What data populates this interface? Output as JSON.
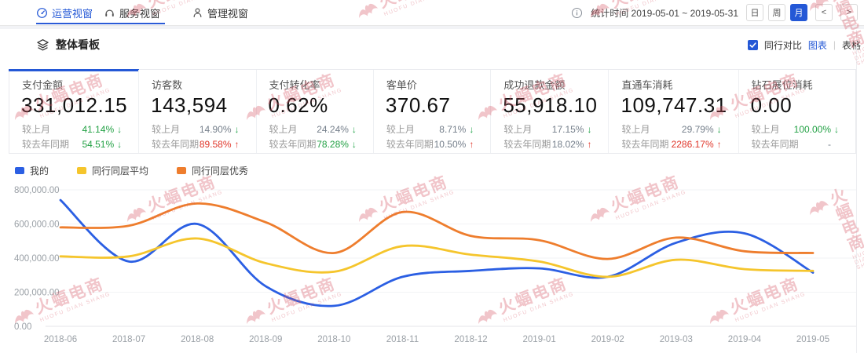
{
  "nav": {
    "tabs": [
      {
        "label": "运营视窗",
        "icon": "gauge-icon",
        "active": true
      },
      {
        "label": "服务视窗",
        "icon": "headset-icon",
        "active": false
      },
      {
        "label": "管理视窗",
        "icon": "person-icon",
        "active": false
      }
    ],
    "stat_time": "统计时间 2019-05-01 ~ 2019-05-31",
    "range_buttons": [
      {
        "label": "日",
        "active": false
      },
      {
        "label": "周",
        "active": false
      },
      {
        "label": "月",
        "active": true
      }
    ],
    "prev_label": "<",
    "next_label": ">"
  },
  "toolbar": {
    "title": "整体看板",
    "compare_label": "同行对比",
    "compare_checked": true,
    "view_chart_label": "图表",
    "view_table_label": "表格"
  },
  "cards": [
    {
      "title": "支付金额",
      "value": "331,012.15",
      "rows": [
        {
          "label": "较上月",
          "value": "41.14%",
          "value_color": "green",
          "arrow": "down"
        },
        {
          "label": "较去年同期",
          "value": "54.51%",
          "value_color": "green",
          "arrow": "down"
        }
      ]
    },
    {
      "title": "访客数",
      "value": "143,594",
      "rows": [
        {
          "label": "较上月",
          "value": "14.90%",
          "value_color": "gray",
          "arrow": "down"
        },
        {
          "label": "较去年同期",
          "value": "89.58%",
          "value_color": "red",
          "arrow": "up"
        }
      ]
    },
    {
      "title": "支付转化率",
      "value": "0.62%",
      "rows": [
        {
          "label": "较上月",
          "value": "24.24%",
          "value_color": "gray",
          "arrow": "down"
        },
        {
          "label": "较去年同期",
          "value": "78.28%",
          "value_color": "green",
          "arrow": "down"
        }
      ]
    },
    {
      "title": "客单价",
      "value": "370.67",
      "rows": [
        {
          "label": "较上月",
          "value": "8.71%",
          "value_color": "gray",
          "arrow": "down"
        },
        {
          "label": "较去年同期",
          "value": "10.50%",
          "value_color": "gray",
          "arrow": "up"
        }
      ]
    },
    {
      "title": "成功退款金额",
      "value": "55,918.10",
      "rows": [
        {
          "label": "较上月",
          "value": "17.15%",
          "value_color": "gray",
          "arrow": "down"
        },
        {
          "label": "较去年同期",
          "value": "18.02%",
          "value_color": "gray",
          "arrow": "up"
        }
      ]
    },
    {
      "title": "直通车消耗",
      "value": "109,747.31",
      "rows": [
        {
          "label": "较上月",
          "value": "29.79%",
          "value_color": "gray",
          "arrow": "down"
        },
        {
          "label": "较去年同期",
          "value": "2286.17%",
          "value_color": "red",
          "arrow": "up"
        }
      ]
    },
    {
      "title": "钻石展位消耗",
      "value": "0.00",
      "rows": [
        {
          "label": "较上月",
          "value": "100.00%",
          "value_color": "green",
          "arrow": "down"
        },
        {
          "label": "较去年同期",
          "value": "-",
          "value_color": "gray",
          "arrow": "none"
        }
      ]
    }
  ],
  "chart_data": {
    "type": "line",
    "smooth": true,
    "categories": [
      "2018-06",
      "2018-07",
      "2018-08",
      "2018-09",
      "2018-10",
      "2018-11",
      "2018-12",
      "2019-01",
      "2019-02",
      "2019-03",
      "2019-04",
      "2019-05"
    ],
    "series": [
      {
        "name": "我的",
        "color": "#2b5fe3",
        "values": [
          740000,
          380000,
          600000,
          235000,
          120000,
          290000,
          325000,
          340000,
          290000,
          490000,
          545000,
          315000
        ]
      },
      {
        "name": "同行同层平均",
        "color": "#f5c52c",
        "values": [
          410000,
          410000,
          515000,
          370000,
          320000,
          470000,
          420000,
          380000,
          290000,
          390000,
          335000,
          325000
        ]
      },
      {
        "name": "同行同层优秀",
        "color": "#ee7d2d",
        "values": [
          580000,
          590000,
          720000,
          610000,
          430000,
          670000,
          530000,
          505000,
          395000,
          520000,
          440000,
          430000
        ]
      }
    ],
    "ylim": [
      0,
      800000
    ],
    "y_ticks": [
      {
        "value": 0,
        "label": "0.00"
      },
      {
        "value": 200000,
        "label": "200,000.00"
      },
      {
        "value": 400000,
        "label": "400,000.00"
      },
      {
        "value": 600000,
        "label": "600,000.00"
      },
      {
        "value": 800000,
        "label": "800,000.00"
      }
    ],
    "grid": true,
    "legend_position": "top-left"
  },
  "watermark": {
    "text": "火蝠电商",
    "subtext": "HUOFU DIAN SHANG"
  },
  "colors": {
    "accent_blue": "#2458d6",
    "green": "#23a145",
    "red": "#e0382c",
    "gray_text": "#76808c",
    "grid_line": "#f2f3f5",
    "axis_line": "#e4e6ea",
    "tick_text": "#9aa0a6",
    "watermark_pink": "rgba(214,85,100,0.34)"
  }
}
